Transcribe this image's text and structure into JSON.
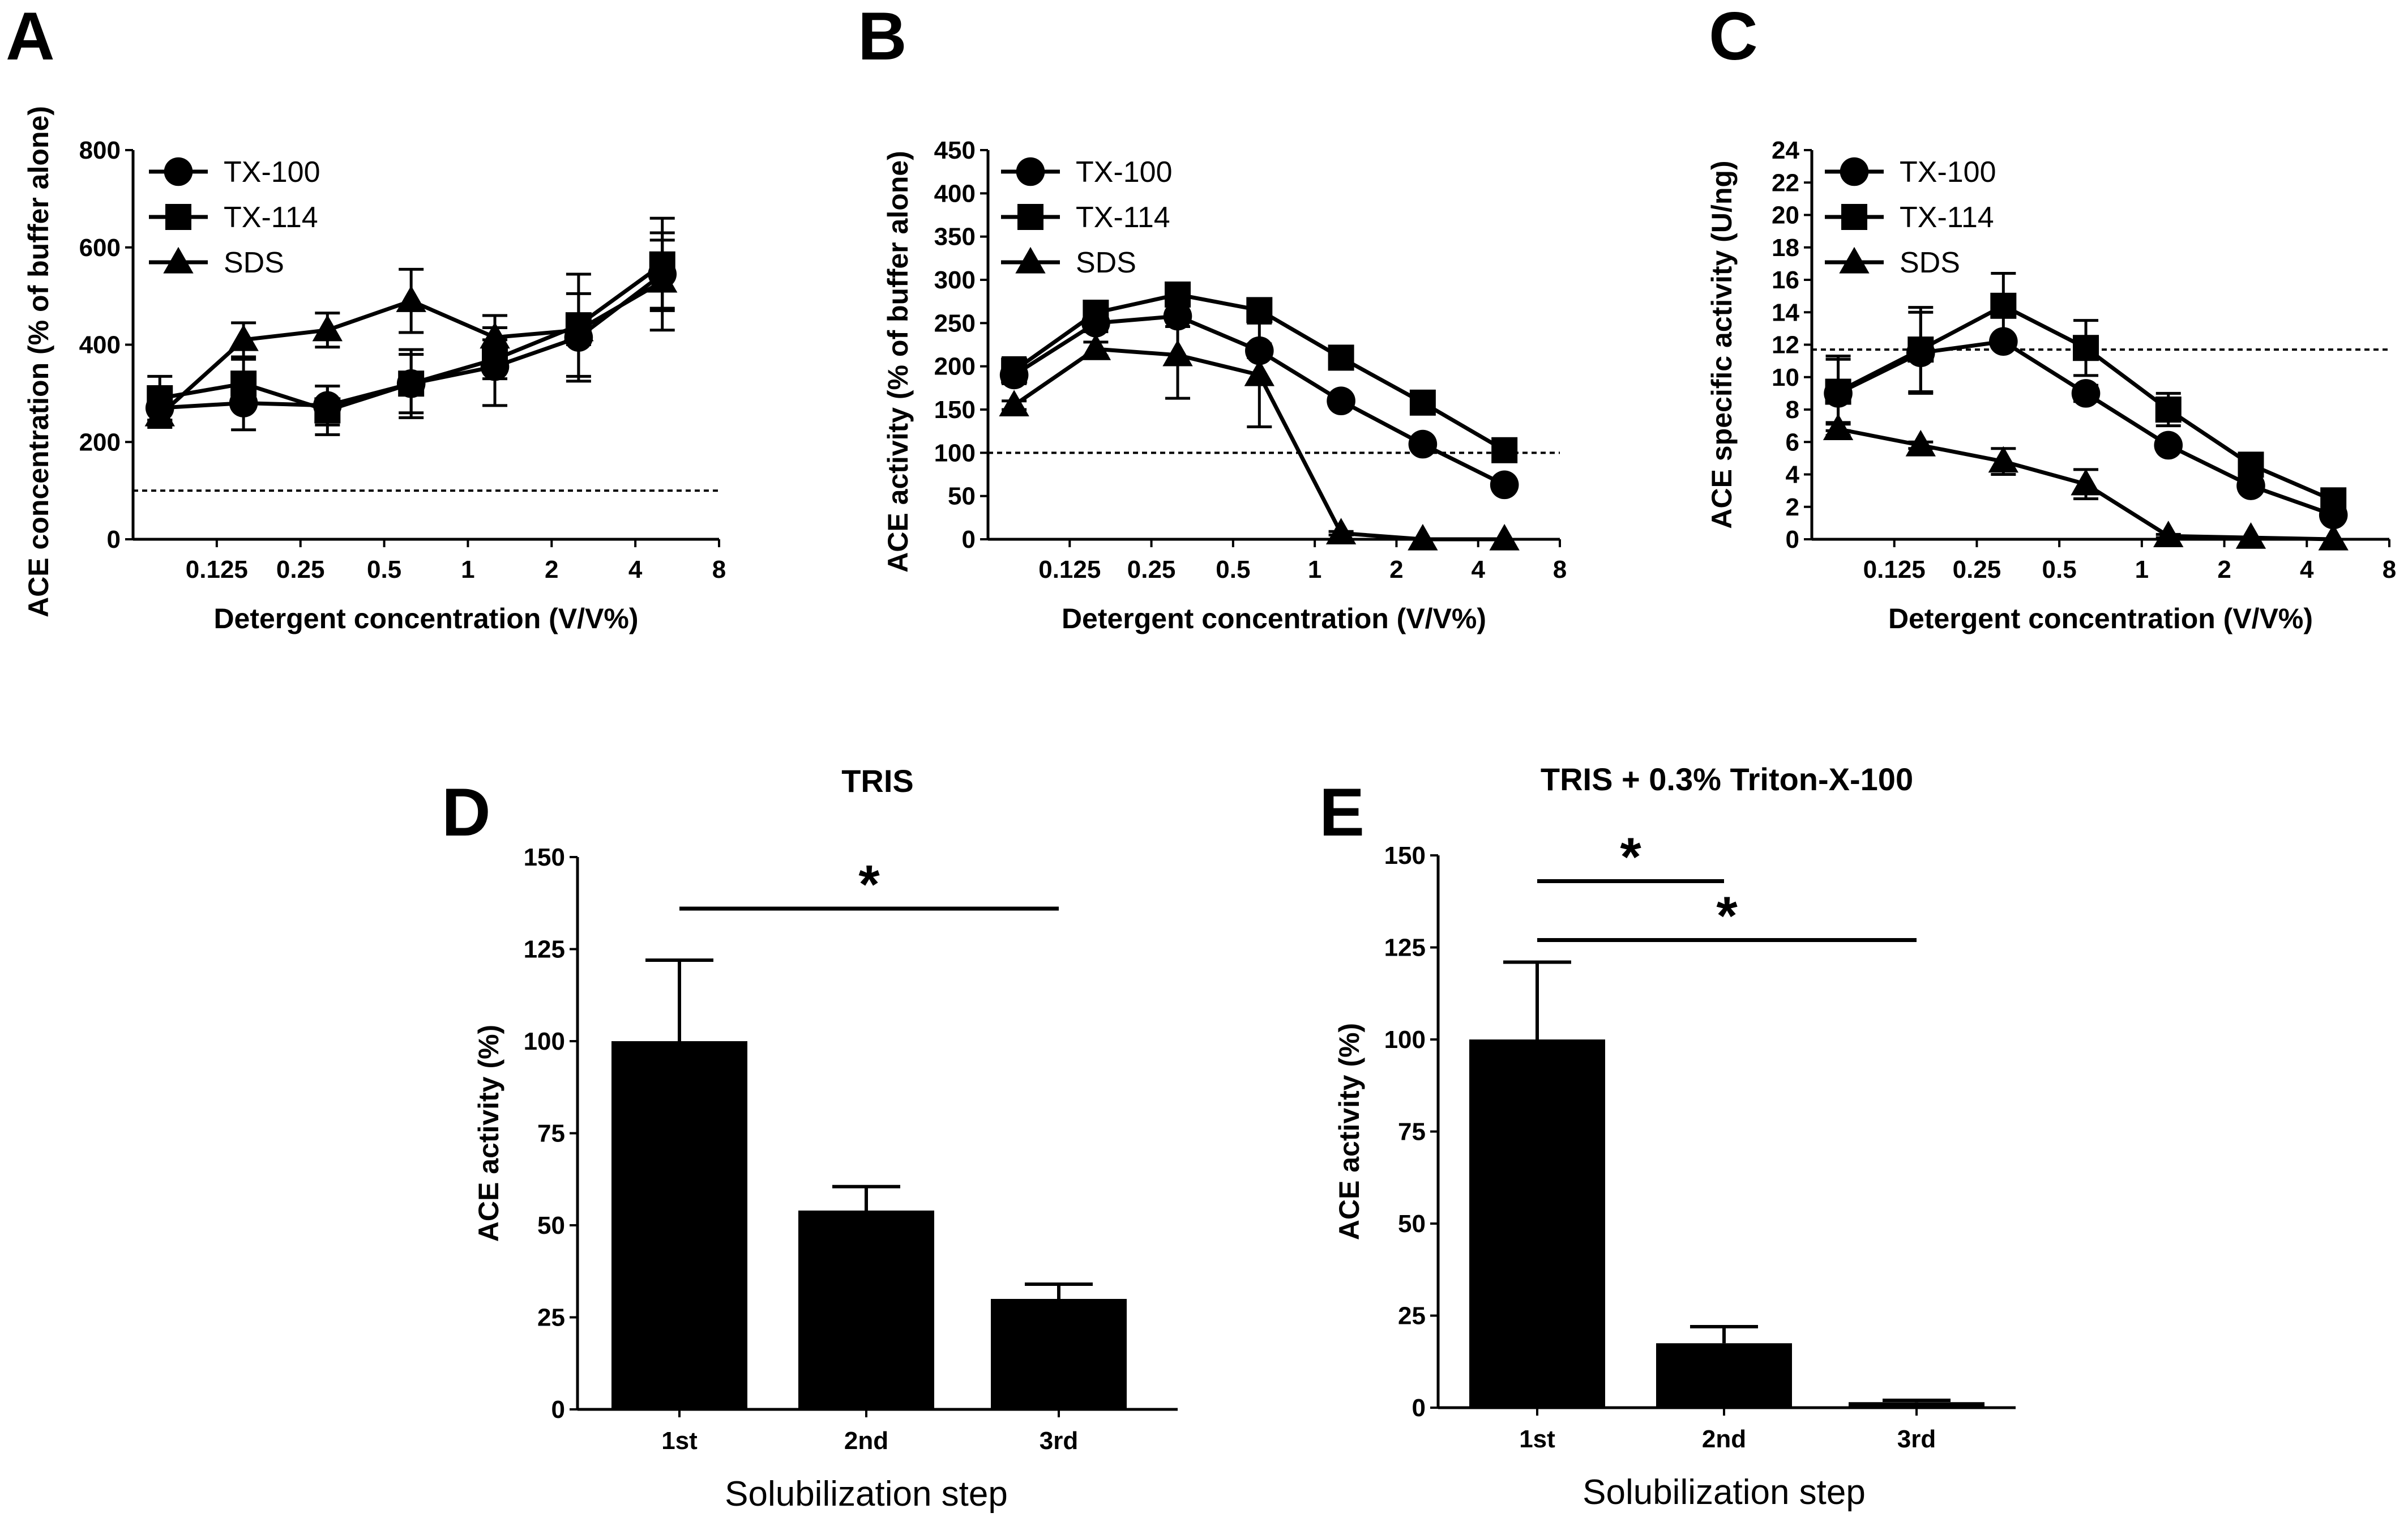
{
  "panels": {
    "A": {
      "letter": "A"
    },
    "B": {
      "letter": "B"
    },
    "C": {
      "letter": "C"
    },
    "D": {
      "letter": "D"
    },
    "E": {
      "letter": "E"
    }
  },
  "chart_data": [
    {
      "id": "A",
      "type": "line",
      "xscale": "log2",
      "xlabel": "Detergent concentration (V/V%)",
      "ylabel": "ACE concentration (% of buffer alone)",
      "xticks": [
        "0.125",
        "0.25",
        "0.5",
        "1",
        "2",
        "4",
        "8"
      ],
      "xtick_values": [
        0.125,
        0.25,
        0.5,
        1,
        2,
        4,
        8
      ],
      "xlim": [
        0.0625,
        8
      ],
      "ylim": [
        0,
        800
      ],
      "yticks": [
        0,
        200,
        400,
        600,
        800
      ],
      "reference_line": 100,
      "legend": [
        "TX-100",
        "TX-114",
        "SDS"
      ],
      "x": [
        0.078,
        0.156,
        0.3125,
        0.625,
        1.25,
        2.5,
        5
      ],
      "series": [
        {
          "name": "TX-100",
          "marker": "circle",
          "values": [
            270,
            280,
            275,
            320,
            355,
            415,
            545
          ],
          "errors": [
            25,
            55,
            40,
            60,
            80,
            90,
            70
          ]
        },
        {
          "name": "TX-114",
          "marker": "square",
          "values": [
            290,
            320,
            265,
            320,
            370,
            440,
            565
          ],
          "errors": [
            45,
            50,
            50,
            70,
            40,
            105,
            95
          ]
        },
        {
          "name": "SDS",
          "marker": "triangle",
          "values": [
            255,
            410,
            430,
            490,
            415,
            430,
            530
          ],
          "errors": [
            25,
            35,
            35,
            65,
            45,
            30,
            100
          ]
        }
      ]
    },
    {
      "id": "B",
      "type": "line",
      "xscale": "log2",
      "xlabel": "Detergent concentration (V/V%)",
      "ylabel": "ACE activity (% of buffer alone)",
      "xticks": [
        "0.125",
        "0.25",
        "0.5",
        "1",
        "2",
        "4",
        "8"
      ],
      "xtick_values": [
        0.125,
        0.25,
        0.5,
        1,
        2,
        4,
        8
      ],
      "xlim": [
        0.0625,
        8
      ],
      "ylim": [
        0,
        450
      ],
      "yticks": [
        0,
        50,
        100,
        150,
        200,
        250,
        300,
        350,
        400,
        450
      ],
      "reference_line": 100,
      "legend": [
        "TX-100",
        "TX-114",
        "SDS"
      ],
      "x": [
        0.078,
        0.156,
        0.3125,
        0.625,
        1.25,
        2.5,
        5
      ],
      "series": [
        {
          "name": "TX-100",
          "marker": "circle",
          "values": [
            190,
            250,
            258,
            218,
            160,
            110,
            63
          ],
          "errors": [
            10,
            10,
            12,
            8,
            6,
            6,
            5
          ]
        },
        {
          "name": "TX-114",
          "marker": "square",
          "values": [
            195,
            262,
            283,
            265,
            210,
            158,
            103
          ],
          "errors": [
            15,
            10,
            8,
            8,
            6,
            6,
            6
          ]
        },
        {
          "name": "SDS",
          "marker": "triangle",
          "values": [
            155,
            220,
            213,
            190,
            7,
            0,
            0
          ],
          "errors": [
            5,
            8,
            50,
            60,
            2,
            0,
            0
          ]
        }
      ]
    },
    {
      "id": "C",
      "type": "line",
      "xscale": "log2",
      "xlabel": "Detergent concentration (V/V%)",
      "ylabel": "ACE specific activity (U/ng)",
      "xticks": [
        "0.125",
        "0.25",
        "0.5",
        "1",
        "2",
        "4",
        "8"
      ],
      "xtick_values": [
        0.125,
        0.25,
        0.5,
        1,
        2,
        4,
        8
      ],
      "xlim": [
        0.0625,
        8
      ],
      "ylim": [
        0,
        24
      ],
      "yticks": [
        0,
        2,
        4,
        6,
        8,
        10,
        12,
        14,
        16,
        18,
        20,
        22,
        24
      ],
      "reference_line": 11.7,
      "legend": [
        "TX-100",
        "TX-114",
        "SDS"
      ],
      "x": [
        0.078,
        0.156,
        0.3125,
        0.625,
        1.25,
        2.5,
        5
      ],
      "series": [
        {
          "name": "TX-100",
          "marker": "circle",
          "values": [
            9.0,
            11.5,
            12.2,
            9.0,
            5.8,
            3.3,
            1.5
          ],
          "errors": [
            2.3,
            2.5,
            0.3,
            0.5,
            0.3,
            0.3,
            0.2
          ]
        },
        {
          "name": "TX-114",
          "marker": "square",
          "values": [
            9.1,
            11.7,
            14.4,
            11.8,
            8.0,
            4.6,
            2.4
          ],
          "errors": [
            2.0,
            2.6,
            2.0,
            1.7,
            1.0,
            0.4,
            0.3
          ]
        },
        {
          "name": "SDS",
          "marker": "triangle",
          "values": [
            6.8,
            5.8,
            4.8,
            3.4,
            0.2,
            0.1,
            0.0
          ],
          "errors": [
            0.4,
            0.2,
            0.8,
            0.9,
            0.1,
            0.0,
            0.0
          ]
        }
      ]
    },
    {
      "id": "D",
      "type": "bar",
      "title": "TRIS",
      "xlabel": "Solubilization step",
      "ylabel": "ACE activity (%)",
      "ylim": [
        0,
        150
      ],
      "yticks": [
        0,
        25,
        50,
        75,
        100,
        125,
        150
      ],
      "categories": [
        "1st",
        "2nd",
        "3rd"
      ],
      "values": [
        100,
        54,
        30
      ],
      "errors": [
        22,
        6.5,
        4
      ],
      "significance": [
        {
          "from": "1st",
          "to": "3rd",
          "label": "*",
          "level": 136
        }
      ]
    },
    {
      "id": "E",
      "type": "bar",
      "title": "TRIS + 0.3% Triton-X-100",
      "xlabel": "Solubilization step",
      "ylabel": "ACE activity (%)",
      "ylim": [
        0,
        150
      ],
      "yticks": [
        0,
        25,
        50,
        75,
        100,
        125,
        150
      ],
      "categories": [
        "1st",
        "2nd",
        "3rd"
      ],
      "values": [
        100,
        17.5,
        1.5
      ],
      "errors": [
        21,
        4.5,
        0.5
      ],
      "significance": [
        {
          "from": "1st",
          "to": "2nd",
          "label": "*",
          "level": 143
        },
        {
          "from": "1st",
          "to": "3rd",
          "label": "*",
          "level": 127
        }
      ]
    }
  ]
}
